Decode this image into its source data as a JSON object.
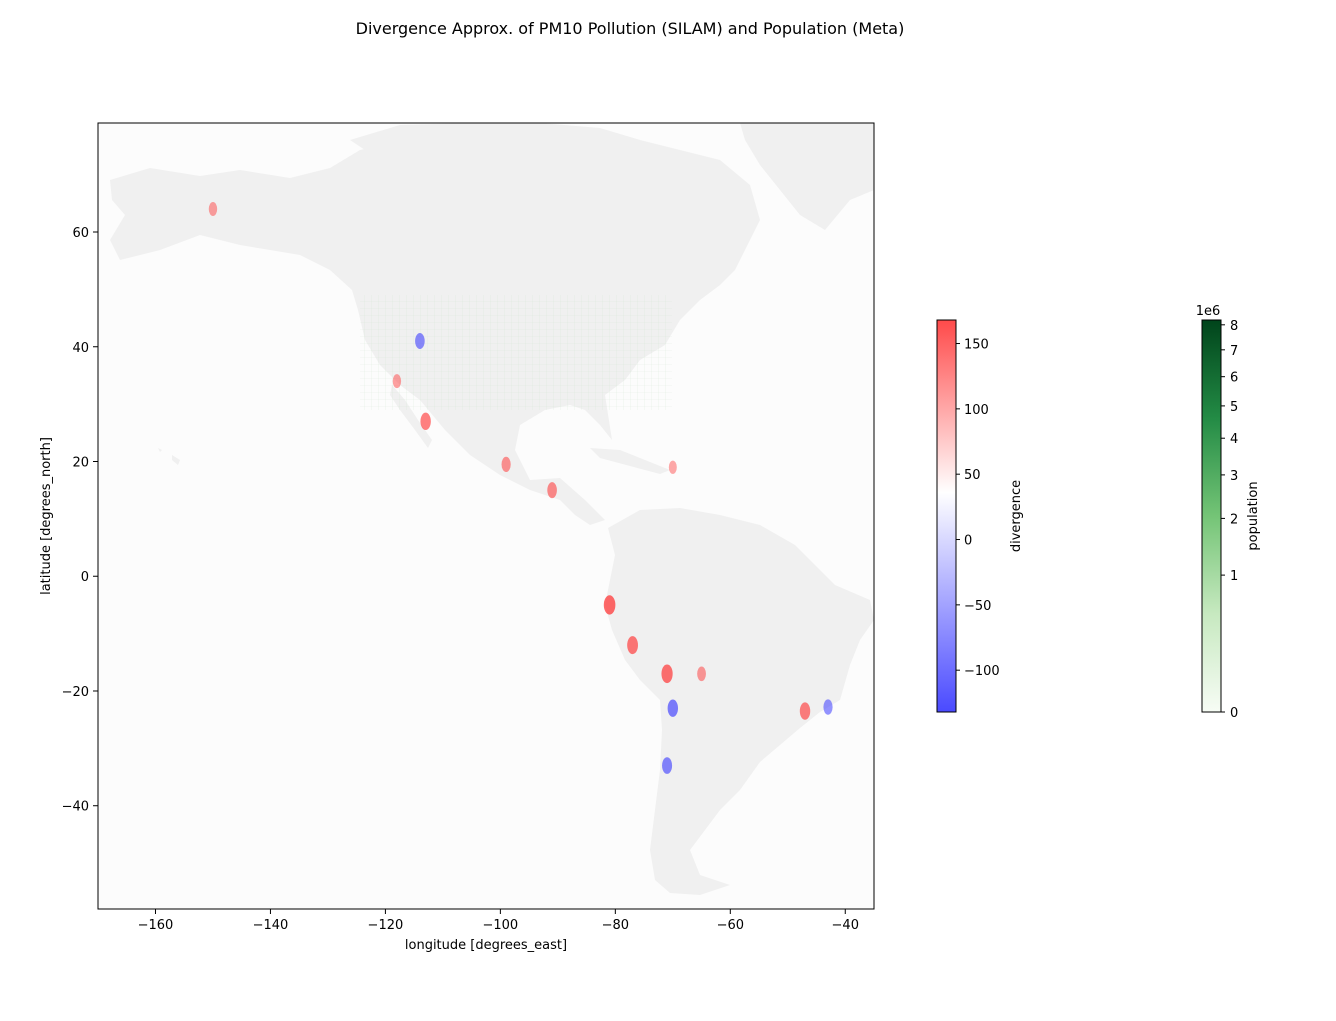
{
  "figure": {
    "title": "Divergence Approx. of PM10 Pollution (SILAM) and Population (Meta)"
  },
  "map": {
    "xlabel": "longitude [degrees_east]",
    "ylabel": "latitude [degrees_north]",
    "xlim": [
      -170,
      -35
    ],
    "ylim": [
      -58,
      79
    ],
    "xticks": [
      -160,
      -140,
      -120,
      -100,
      -80,
      -60,
      -40
    ],
    "yticks": [
      -40,
      -20,
      0,
      20,
      40,
      60
    ],
    "xtick_labels": [
      "−160",
      "−140",
      "−120",
      "−100",
      "−80",
      "−60",
      "−40"
    ],
    "ytick_labels": [
      "−40",
      "−20",
      "0",
      "20",
      "40",
      "60"
    ],
    "ocean_color": "#fcfcfc",
    "land_color": "#f0f0f0"
  },
  "divergence_colorbar": {
    "label": "divergence",
    "range": [
      -132,
      168
    ],
    "ticks": [
      150,
      100,
      50,
      0,
      -50,
      -100
    ],
    "tick_labels": [
      "150",
      "100",
      "50",
      "0",
      "−50",
      "−100"
    ],
    "colors": {
      "max": "#ff4a4a",
      "mid": "#ffffff",
      "min": "#4a4aff"
    }
  },
  "population_colorbar": {
    "label": "population",
    "offset_label": "1e6",
    "scale": "power (≈ sqrt)",
    "range": [
      0,
      8.2
    ],
    "ticks": [
      8,
      7,
      6,
      5,
      4,
      3,
      2,
      1,
      0
    ],
    "tick_labels": [
      "8",
      "7",
      "6",
      "5",
      "4",
      "3",
      "2",
      "1",
      "0"
    ],
    "colors": {
      "low": "#f7fcf5",
      "mid": "#74c476",
      "high": "#00441b"
    }
  },
  "chart_data": {
    "type": "heatmap",
    "title": "Divergence Approx. of PM10 Pollution (SILAM) and Population (Meta)",
    "xlabel": "longitude [degrees_east]",
    "ylabel": "latitude [degrees_north]",
    "xlim": [
      -170,
      -35
    ],
    "ylim": [
      -58,
      79
    ],
    "hotspots": [
      {
        "lon": -114,
        "lat": 41,
        "value": -90
      },
      {
        "lon": -118,
        "lat": 34,
        "value": 60
      },
      {
        "lon": -113,
        "lat": 27,
        "value": 110
      },
      {
        "lon": -99,
        "lat": 19.5,
        "value": 80
      },
      {
        "lon": -91,
        "lat": 15,
        "value": 90
      },
      {
        "lon": -81,
        "lat": -5,
        "value": 140
      },
      {
        "lon": -77,
        "lat": -12,
        "value": 120
      },
      {
        "lon": -71,
        "lat": -17,
        "value": 130
      },
      {
        "lon": -70,
        "lat": -23,
        "value": -110
      },
      {
        "lon": -71,
        "lat": -33,
        "value": -100
      },
      {
        "lon": -65,
        "lat": -17,
        "value": 70
      },
      {
        "lon": -47,
        "lat": -23.5,
        "value": 110
      },
      {
        "lon": -43,
        "lat": -22.8,
        "value": -80
      },
      {
        "lon": -150,
        "lat": 64,
        "value": 60
      },
      {
        "lon": -70,
        "lat": 19,
        "value": 50
      }
    ]
  }
}
